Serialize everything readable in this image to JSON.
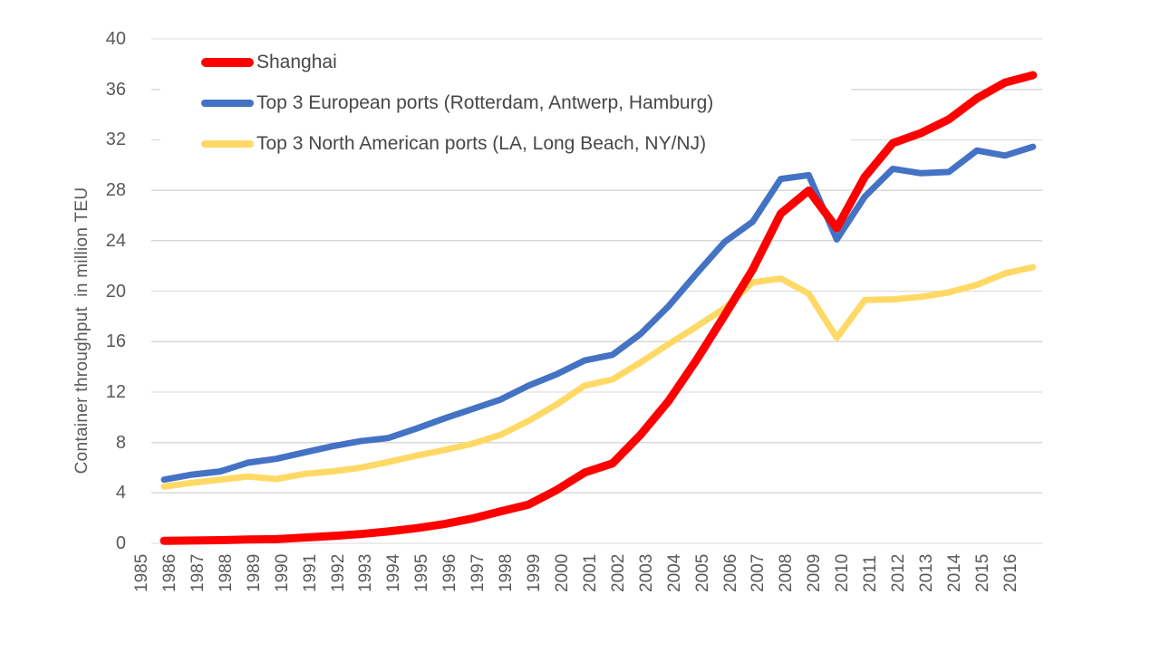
{
  "chart_data": {
    "type": "line",
    "title": "",
    "xlabel": "",
    "ylabel": "Container throughput  in million TEU",
    "ylim": [
      0,
      40
    ],
    "ytick_step": 4,
    "yticks": [
      0,
      4,
      8,
      12,
      16,
      20,
      24,
      28,
      32,
      36,
      40
    ],
    "grid": true,
    "legend_position": "top-left-inside",
    "x": [
      1985,
      1986,
      1987,
      1988,
      1989,
      1990,
      1991,
      1992,
      1993,
      1994,
      1995,
      1996,
      1997,
      1998,
      1999,
      2000,
      2001,
      2002,
      2003,
      2004,
      2005,
      2006,
      2007,
      2008,
      2009,
      2010,
      2011,
      2012,
      2013,
      2014,
      2015,
      2016
    ],
    "series": [
      {
        "name": "Shanghai",
        "color": "#FF0000",
        "stroke_width": 9,
        "values": [
          0.2,
          0.22,
          0.25,
          0.3,
          0.33,
          0.46,
          0.58,
          0.73,
          0.94,
          1.2,
          1.53,
          1.97,
          2.53,
          3.07,
          4.22,
          5.61,
          6.34,
          8.61,
          11.28,
          14.56,
          18.08,
          21.71,
          26.15,
          27.98,
          25.0,
          29.07,
          31.74,
          32.53,
          33.62,
          35.29,
          36.54,
          37.13
        ]
      },
      {
        "name": "Top 3 European ports (Rotterdam, Antwerp, Hamburg)",
        "color": "#4472C4",
        "stroke_width": 7,
        "values": [
          5.05,
          5.45,
          5.7,
          6.4,
          6.7,
          7.2,
          7.7,
          8.1,
          8.35,
          9.1,
          9.9,
          10.65,
          11.4,
          12.5,
          13.4,
          14.5,
          14.95,
          16.6,
          18.8,
          21.4,
          23.9,
          25.5,
          28.9,
          29.2,
          24.1,
          27.5,
          29.7,
          29.35,
          29.45,
          31.15,
          30.75,
          31.45
        ]
      },
      {
        "name": "Top 3 North American ports (LA, Long Beach, NY/NJ)",
        "color": "#FFD966",
        "stroke_width": 7,
        "values": [
          4.5,
          4.8,
          5.05,
          5.3,
          5.1,
          5.5,
          5.7,
          6.0,
          6.45,
          6.95,
          7.4,
          7.9,
          8.6,
          9.7,
          11.0,
          12.5,
          13.0,
          14.35,
          15.8,
          17.2,
          18.65,
          20.7,
          21.0,
          19.8,
          16.3,
          19.3,
          19.35,
          19.55,
          19.9,
          20.5,
          21.4,
          21.9
        ]
      }
    ]
  },
  "colors": {
    "background": "#FFFFFF",
    "grid": "#D9D9D9",
    "axis_text": "#595959",
    "legend_text": "#474747"
  }
}
